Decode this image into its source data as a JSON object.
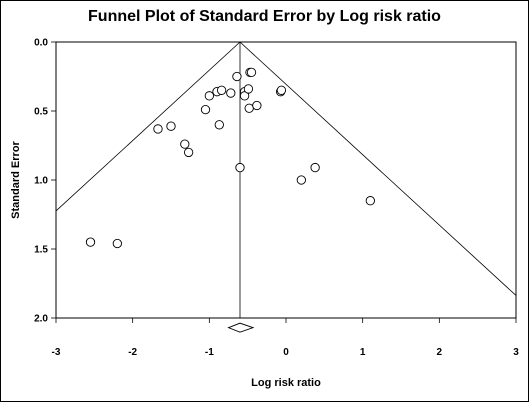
{
  "chart_data": {
    "type": "scatter",
    "title": "Funnel Plot of Standard Error by Log risk ratio",
    "xlabel": "Log risk ratio",
    "ylabel": "Standard Error",
    "xlim": [
      -3,
      3
    ],
    "ylim": [
      0,
      2
    ],
    "y_inverted": true,
    "x_ticks": [
      -3,
      -2,
      -1,
      0,
      1,
      2,
      3
    ],
    "x_tick_labels": [
      "-3",
      "-2",
      "-1",
      "0",
      "1",
      "2",
      "3"
    ],
    "y_ticks": [
      0,
      0.5,
      1,
      1.5,
      2
    ],
    "y_tick_labels": [
      "0.0",
      "0.5",
      "1.0",
      "1.5",
      "2.0"
    ],
    "pooled_estimate": -0.6,
    "summary_diamond": {
      "center": -0.6,
      "lower": -0.75,
      "upper": -0.43,
      "se": 2.07
    },
    "funnel_limits": true,
    "grid": false,
    "colors": {
      "points": "#000000",
      "lines": "#000000",
      "background": "#ffffff"
    },
    "points": [
      {
        "x": -2.55,
        "y": 1.45
      },
      {
        "x": -2.2,
        "y": 1.46
      },
      {
        "x": -1.67,
        "y": 0.63
      },
      {
        "x": -1.5,
        "y": 0.61
      },
      {
        "x": -1.32,
        "y": 0.74
      },
      {
        "x": -1.27,
        "y": 0.8
      },
      {
        "x": -1.05,
        "y": 0.49
      },
      {
        "x": -1.0,
        "y": 0.39
      },
      {
        "x": -0.9,
        "y": 0.36
      },
      {
        "x": -0.87,
        "y": 0.6
      },
      {
        "x": -0.84,
        "y": 0.35
      },
      {
        "x": -0.72,
        "y": 0.37
      },
      {
        "x": -0.64,
        "y": 0.25
      },
      {
        "x": -0.6,
        "y": 0.91
      },
      {
        "x": -0.54,
        "y": 0.36
      },
      {
        "x": -0.54,
        "y": 0.39
      },
      {
        "x": -0.49,
        "y": 0.34
      },
      {
        "x": -0.47,
        "y": 0.22
      },
      {
        "x": -0.45,
        "y": 0.22
      },
      {
        "x": -0.48,
        "y": 0.48
      },
      {
        "x": -0.38,
        "y": 0.46
      },
      {
        "x": -0.07,
        "y": 0.36
      },
      {
        "x": -0.06,
        "y": 0.35
      },
      {
        "x": 0.2,
        "y": 1.0
      },
      {
        "x": 0.38,
        "y": 0.91
      },
      {
        "x": 1.1,
        "y": 1.15
      }
    ]
  }
}
